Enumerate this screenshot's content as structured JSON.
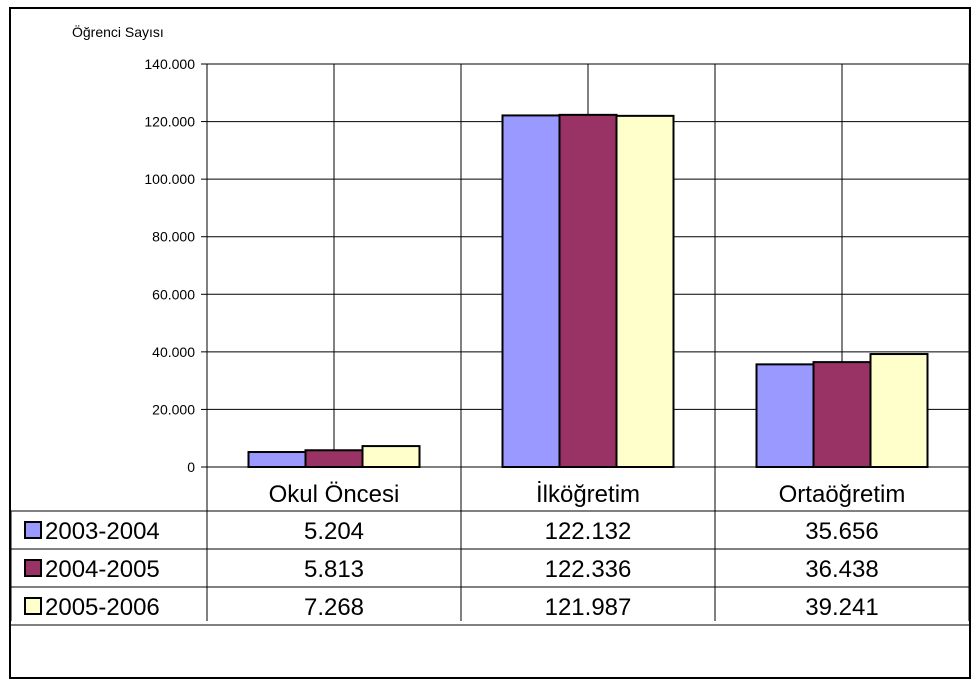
{
  "chart_data": {
    "type": "bar",
    "title": "",
    "ylabel": "Öğrenci Sayısı",
    "xlabel": "",
    "ylim": [
      0,
      140000
    ],
    "yticks": [
      {
        "value": 0,
        "label": "0"
      },
      {
        "value": 20000,
        "label": "20.000"
      },
      {
        "value": 40000,
        "label": "40.000"
      },
      {
        "value": 60000,
        "label": "60.000"
      },
      {
        "value": 80000,
        "label": "80.000"
      },
      {
        "value": 100000,
        "label": "100.000"
      },
      {
        "value": 120000,
        "label": "120.000"
      },
      {
        "value": 140000,
        "label": "140.000"
      }
    ],
    "categories": [
      "Okul Öncesi",
      "İlköğretim",
      "Ortaöğretim"
    ],
    "series": [
      {
        "name": "2003-2004",
        "color": "#9999ff",
        "values": [
          5204,
          122132,
          35656
        ],
        "labels": [
          "5.204",
          "122.132",
          "35.656"
        ]
      },
      {
        "name": "2004-2005",
        "color": "#993366",
        "values": [
          5813,
          122336,
          36438
        ],
        "labels": [
          "5.813",
          "122.336",
          "36.438"
        ]
      },
      {
        "name": "2005-2006",
        "color": "#ffffcc",
        "values": [
          7268,
          121987,
          39241
        ],
        "labels": [
          "7.268",
          "121.987",
          "39.241"
        ]
      }
    ],
    "grid": true,
    "legend": "data-table"
  }
}
